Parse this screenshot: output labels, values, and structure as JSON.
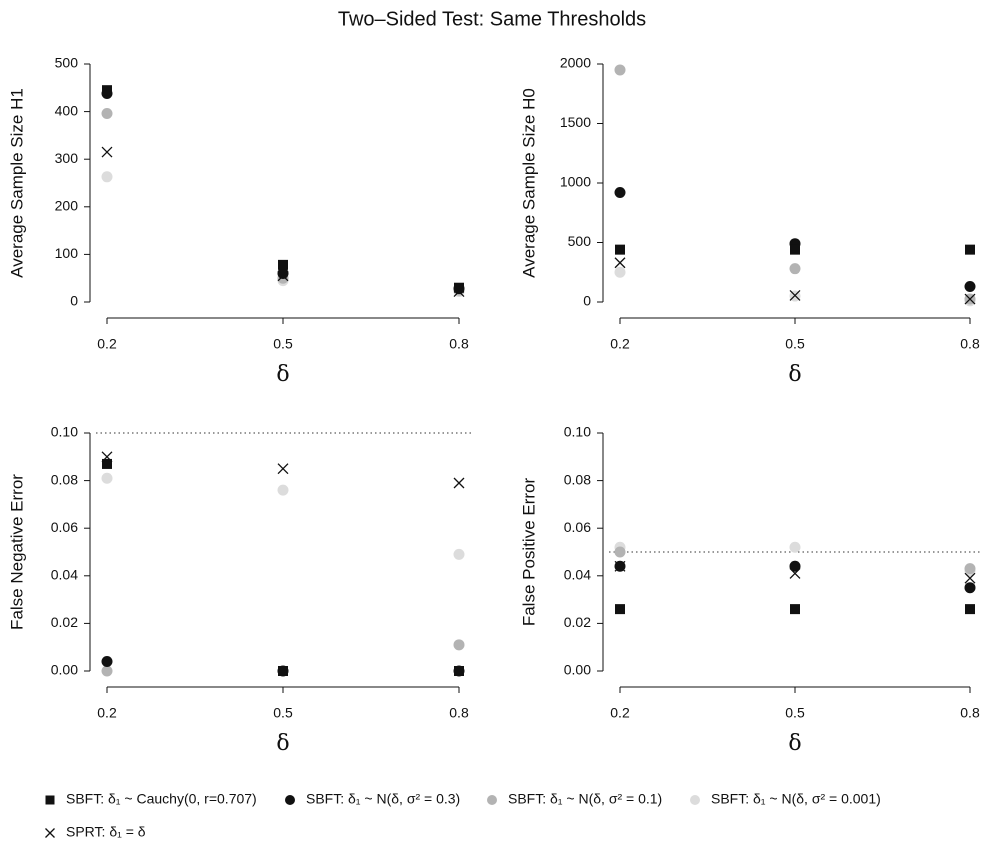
{
  "title": "Two–Sided Test: Same Thresholds",
  "legend": [
    {
      "name": "SBFT: δ₁ ~ Cauchy(0, r=0.707)",
      "color": "#111111",
      "marker": "square"
    },
    {
      "name": "SBFT: δ₁ ~ N(δ, σ² = 0.3)",
      "color": "#111111",
      "marker": "circle"
    },
    {
      "name": "SBFT: δ₁ ~ N(δ, σ² = 0.1)",
      "color": "#b3b3b3",
      "marker": "circle"
    },
    {
      "name": "SBFT: δ₁ ~ N(δ, σ² = 0.001)",
      "color": "#dcdcdc",
      "marker": "circle"
    },
    {
      "name": "SPRT: δ₁ = δ",
      "color": "#111111",
      "marker": "x"
    }
  ],
  "chart_data": [
    {
      "type": "scatter",
      "xlabel": "δ",
      "ylabel": "Average Sample Size H1",
      "x": [
        0.2,
        0.5,
        0.8
      ],
      "xlim": [
        0.2,
        0.8
      ],
      "xticks": [
        0.2,
        0.5,
        0.8
      ],
      "ylim": [
        0,
        500
      ],
      "yticks": [
        0,
        100,
        200,
        300,
        400,
        500
      ],
      "series": [
        {
          "values": [
            445,
            78,
            30
          ]
        },
        {
          "values": [
            438,
            60,
            28
          ]
        },
        {
          "values": [
            396,
            50,
            25
          ]
        },
        {
          "values": [
            263,
            45,
            22
          ]
        },
        {
          "values": [
            315,
            55,
            22
          ]
        }
      ]
    },
    {
      "type": "scatter",
      "xlabel": "δ",
      "ylabel": "Average Sample Size H0",
      "x": [
        0.2,
        0.5,
        0.8
      ],
      "xlim": [
        0.2,
        0.8
      ],
      "xticks": [
        0.2,
        0.5,
        0.8
      ],
      "ylim": [
        0,
        2000
      ],
      "yticks": [
        0,
        500,
        1000,
        1500,
        2000
      ],
      "series": [
        {
          "values": [
            440,
            440,
            440
          ]
        },
        {
          "values": [
            920,
            490,
            130
          ]
        },
        {
          "values": [
            1950,
            280,
            25
          ]
        },
        {
          "values": [
            250,
            50,
            10
          ]
        },
        {
          "values": [
            330,
            55,
            25
          ]
        }
      ]
    },
    {
      "type": "scatter",
      "xlabel": "δ",
      "ylabel": "False Negative Error",
      "x": [
        0.2,
        0.5,
        0.8
      ],
      "xlim": [
        0.2,
        0.8
      ],
      "xticks": [
        0.2,
        0.5,
        0.8
      ],
      "ylim": [
        0,
        0.1
      ],
      "hline": 0.1,
      "yticks": [
        {
          "value": 0,
          "label": "0.00"
        },
        {
          "value": 0.02,
          "label": "0.02"
        },
        {
          "value": 0.04,
          "label": "0.04"
        },
        {
          "value": 0.06,
          "label": "0.06"
        },
        {
          "value": 0.08,
          "label": "0.08"
        },
        {
          "value": 0.1,
          "label": "0.10"
        }
      ],
      "series": [
        {
          "values": [
            0.087,
            0,
            0
          ]
        },
        {
          "values": [
            0.004,
            0,
            0
          ]
        },
        {
          "values": [
            0,
            0,
            0.011
          ]
        },
        {
          "values": [
            0.081,
            0.076,
            0.049
          ]
        },
        {
          "values": [
            0.09,
            0.085,
            0.079
          ]
        }
      ]
    },
    {
      "type": "scatter",
      "xlabel": "δ",
      "ylabel": "False Positive Error",
      "x": [
        0.2,
        0.5,
        0.8
      ],
      "xlim": [
        0.2,
        0.8
      ],
      "xticks": [
        0.2,
        0.5,
        0.8
      ],
      "ylim": [
        0,
        0.1
      ],
      "hline": 0.05,
      "yticks": [
        {
          "value": 0,
          "label": "0.00"
        },
        {
          "value": 0.02,
          "label": "0.02"
        },
        {
          "value": 0.04,
          "label": "0.04"
        },
        {
          "value": 0.06,
          "label": "0.06"
        },
        {
          "value": 0.08,
          "label": "0.08"
        },
        {
          "value": 0.1,
          "label": "0.10"
        }
      ],
      "series": [
        {
          "values": [
            0.026,
            0.026,
            0.026
          ]
        },
        {
          "values": [
            0.044,
            0.044,
            0.035
          ]
        },
        {
          "values": [
            0.05,
            0.044,
            0.043
          ]
        },
        {
          "values": [
            0.052,
            0.052,
            0.042
          ]
        },
        {
          "values": [
            0.044,
            0.041,
            0.039
          ]
        }
      ]
    }
  ]
}
